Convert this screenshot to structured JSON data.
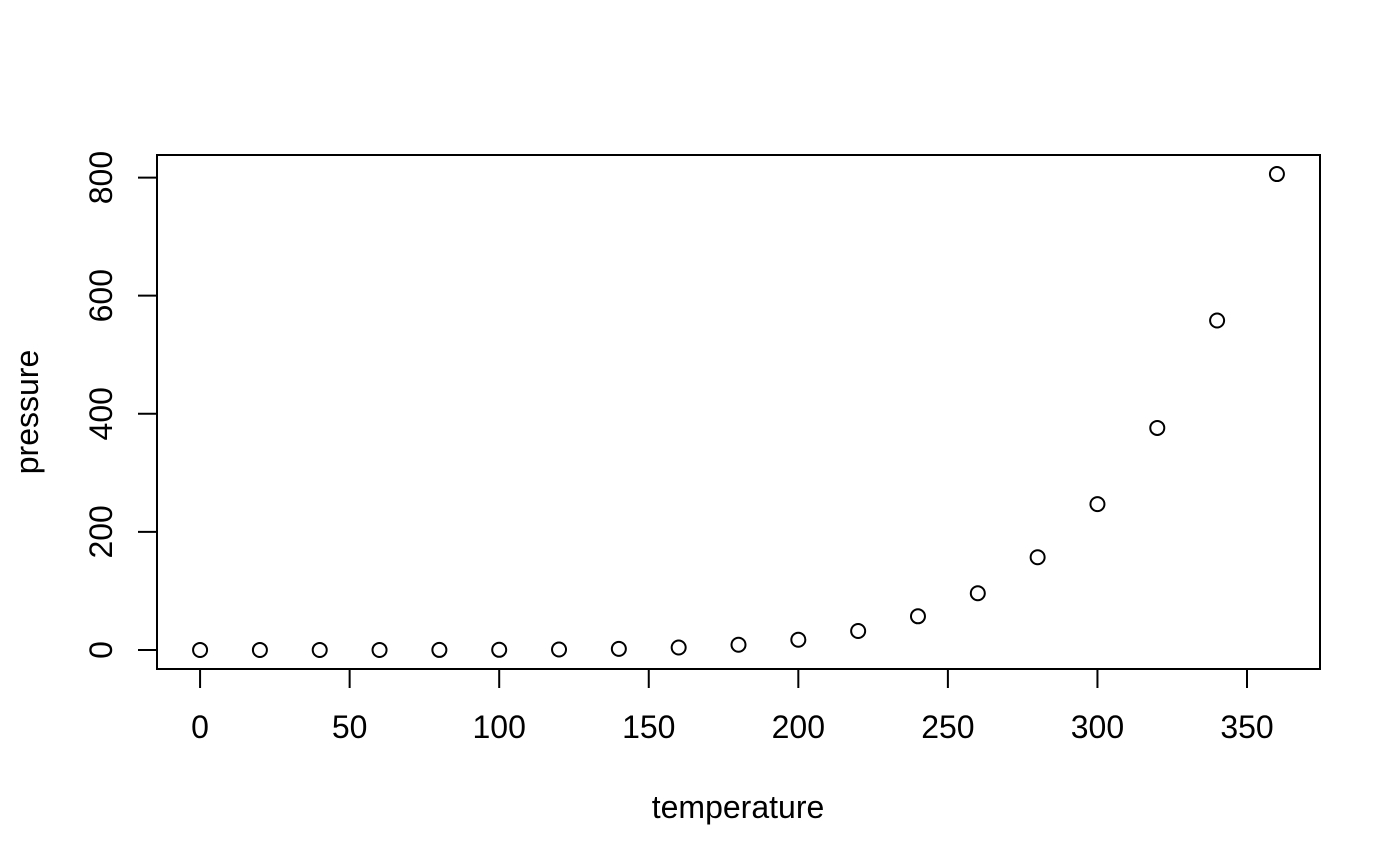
{
  "page": {
    "background": "#ffffff",
    "foreground": "#000000"
  },
  "chart_data": {
    "type": "scatter",
    "title": "",
    "xlabel": "temperature",
    "ylabel": "pressure",
    "x": [
      0,
      20,
      40,
      60,
      80,
      100,
      120,
      140,
      160,
      180,
      200,
      220,
      240,
      260,
      280,
      300,
      320,
      340,
      360
    ],
    "y": [
      0.0002,
      0.0012,
      0.006,
      0.03,
      0.09,
      0.27,
      0.75,
      1.85,
      4.2,
      8.8,
      17.3,
      32.1,
      57,
      96,
      157,
      247,
      376,
      558,
      806
    ],
    "xlim": [
      -14.4,
      374.4
    ],
    "ylim": [
      -32.24,
      838.24
    ],
    "xticks": [
      0,
      50,
      100,
      150,
      200,
      250,
      300,
      350
    ],
    "yticks": [
      0,
      200,
      400,
      600,
      800
    ],
    "grid": false,
    "legend": null,
    "marker": "open-circle",
    "marker_color": "#000000",
    "axis_color": "#000000"
  }
}
